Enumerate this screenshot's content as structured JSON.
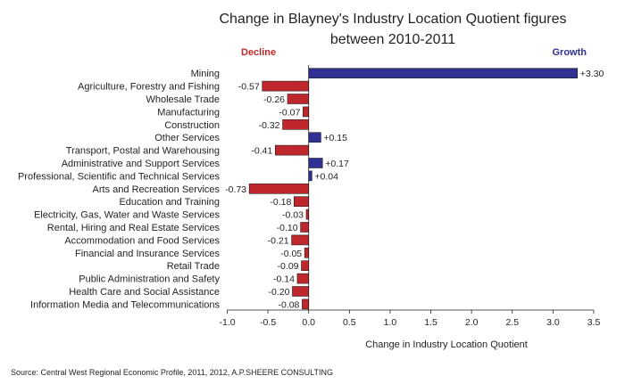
{
  "chart_data": {
    "type": "bar",
    "orientation": "horizontal",
    "title": "Change in Blayney's Industry Location Quotient figures",
    "subtitle": "between 2010-2011",
    "xlabel": "Change in Industry Location Quotient",
    "xlim": [
      -1.0,
      3.5
    ],
    "xticks": [
      "-1.0",
      "-0.5",
      "0.0",
      "0.5",
      "1.0",
      "1.5",
      "2.0",
      "2.5",
      "3.0",
      "3.5"
    ],
    "legend": {
      "decline": "Decline",
      "growth": "Growth",
      "decline_color": "#c0272d",
      "growth_color": "#2e3192"
    },
    "categories": [
      "Mining",
      "Agriculture, Forestry and Fishing",
      "Wholesale Trade",
      "Manufacturing",
      "Construction",
      "Other Services",
      "Transport, Postal and Warehousing",
      "Administrative and Support Services",
      "Professional, Scientific and Technical Services",
      "Arts and Recreation Services",
      "Education and Training",
      "Electricity, Gas, Water and Waste Services",
      "Rental, Hiring and Real Estate Services",
      "Accommodation and Food Services",
      "Financial and Insurance Services",
      "Retail Trade",
      "Public Administration and Safety",
      "Health Care and Social Assistance",
      "Information Media and Telecommunications"
    ],
    "values": [
      3.3,
      -0.57,
      -0.26,
      -0.07,
      -0.32,
      0.15,
      -0.41,
      0.17,
      0.04,
      -0.73,
      -0.18,
      -0.03,
      -0.1,
      -0.21,
      -0.05,
      -0.09,
      -0.14,
      -0.2,
      -0.08
    ],
    "value_labels": [
      "+3.30",
      "-0.57",
      "-0.26",
      "-0.07",
      "-0.32",
      "+0.15",
      "-0.41",
      "+0.17",
      "+0.04",
      "-0.73",
      "-0.18",
      "-0.03",
      "-0.10",
      "-0.21",
      "-0.05",
      "-0.09",
      "-0.14",
      "-0.20",
      "-0.08"
    ],
    "source": "Source: Central West Regional Economic Profile, 2011, 2012, A.P.SHEERE CONSULTING"
  }
}
